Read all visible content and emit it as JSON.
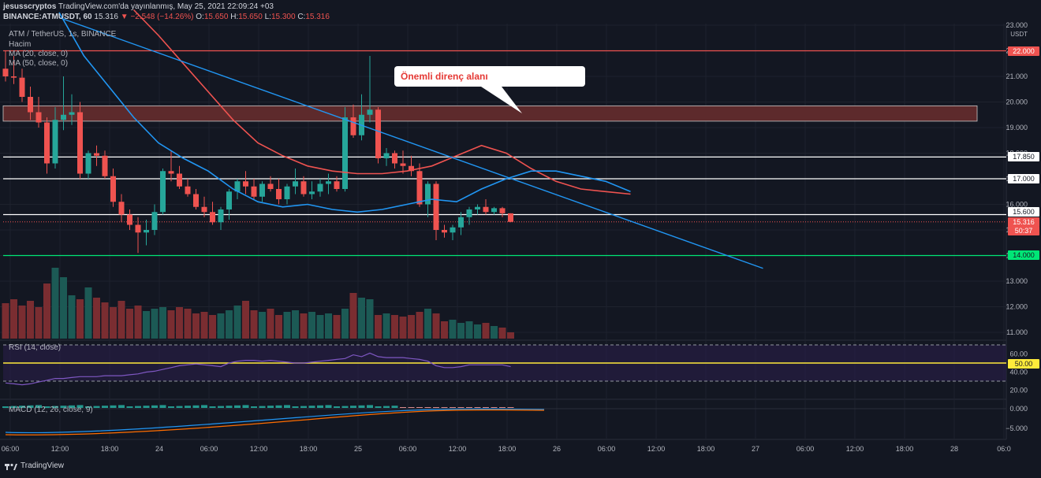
{
  "header": {
    "line1_user": "jesusscryptos",
    "line1_rest": "TradingView.com'da yayınlanmış, May 25, 2021 22:09:24 +03",
    "symbol": "BINANCE:ATMUSDT, 60",
    "last": "15.316",
    "change": "▼ −2.548 (−14.26%)",
    "o_label": "O:",
    "o_val": "15.650",
    "h_label": "H:",
    "h_val": "15.650",
    "l_label": "L:",
    "l_val": "15.300",
    "c_label": "C:",
    "c_val": "15.316"
  },
  "legend": {
    "pair": "ATM / TetherUS, 1s, BINANCE",
    "volume": "Hacim",
    "ma20": "MA (20, close, 0)",
    "ma50": "MA (50, close, 0)",
    "rsi": "RSI (14, close)",
    "macd": "MACD (12, 26, close, 9)"
  },
  "annotation": {
    "text": "Önemli direnç alanı"
  },
  "axis": {
    "currency": "USDT",
    "price_ticks": [
      "23.000",
      "22.000",
      "21.000",
      "20.000",
      "19.000",
      "18.000",
      "17.000",
      "16.000",
      "15.000",
      "14.000",
      "13.000",
      "12.000",
      "11.000"
    ],
    "rsi_ticks": [
      "60.00",
      "40.00",
      "20.00"
    ],
    "macd_ticks": [
      "0.000",
      "−5.000"
    ],
    "time_labels": [
      "06:00",
      "12:00",
      "18:00",
      "24",
      "06:00",
      "12:00",
      "18:00",
      "25",
      "06:00",
      "12:00",
      "18:00",
      "26",
      "06:00",
      "12:00",
      "18:00",
      "27",
      "06:00",
      "12:00",
      "18:00",
      "28",
      "06:0"
    ]
  },
  "price_labels": {
    "level_22": "22.000",
    "level_17850": "17.850",
    "level_17": "17.000",
    "level_15600": "15.600",
    "last": "15.316",
    "countdown": "50:37",
    "level_14": "14.000",
    "rsi_mid": "50.00"
  },
  "colors": {
    "up": "#26a69a",
    "down": "#ef5350",
    "bg": "#131722",
    "ma20": "#2196f3",
    "ma50": "#ef5350",
    "trendline": "#2196f3",
    "zone": "#5d2a2c",
    "support": "#00e676",
    "rsi_mid": "#ffeb3b"
  },
  "footer": {
    "brand": "TradingView"
  },
  "chart_data": {
    "type": "candlestick",
    "title": "ATM / TetherUS, 1s, BINANCE",
    "y_range": [
      11.0,
      23.0
    ],
    "horizontal_levels": [
      22.0,
      17.85,
      17.0,
      15.6,
      14.0
    ],
    "resistance_zone": [
      19.25,
      19.85
    ],
    "trendline": {
      "from": [
        "May 23 00:00",
        23.3
      ],
      "to": [
        "May 26 13:00",
        13.5
      ]
    },
    "candles": [
      [
        21.3,
        22.0,
        20.8,
        21.0
      ],
      [
        21.0,
        21.8,
        20.7,
        20.95
      ],
      [
        20.95,
        21.3,
        20.0,
        20.2
      ],
      [
        20.2,
        20.6,
        19.3,
        19.6
      ],
      [
        19.6,
        20.2,
        19.0,
        19.2
      ],
      [
        19.2,
        19.4,
        17.2,
        17.6
      ],
      [
        17.6,
        19.8,
        17.4,
        19.3
      ],
      [
        19.3,
        21.0,
        18.9,
        19.5
      ],
      [
        19.5,
        20.3,
        19.1,
        19.6
      ],
      [
        19.6,
        20.0,
        17.0,
        17.2
      ],
      [
        17.2,
        18.1,
        17.0,
        18.0
      ],
      [
        18.0,
        18.3,
        17.5,
        17.9
      ],
      [
        17.9,
        18.1,
        17.0,
        17.1
      ],
      [
        17.1,
        17.4,
        15.9,
        16.1
      ],
      [
        16.1,
        16.4,
        15.3,
        15.6
      ],
      [
        15.6,
        15.8,
        15.0,
        15.2
      ],
      [
        15.2,
        15.5,
        14.1,
        14.9
      ],
      [
        14.9,
        15.4,
        14.4,
        15.0
      ],
      [
        15.0,
        16.0,
        14.8,
        15.7
      ],
      [
        15.7,
        17.4,
        15.6,
        17.3
      ],
      [
        17.3,
        18.1,
        16.9,
        17.2
      ],
      [
        17.2,
        17.5,
        16.6,
        16.7
      ],
      [
        16.7,
        17.0,
        16.3,
        16.4
      ],
      [
        16.4,
        16.6,
        15.8,
        15.9
      ],
      [
        15.9,
        16.3,
        15.5,
        15.7
      ],
      [
        15.7,
        16.1,
        15.2,
        15.3
      ],
      [
        15.3,
        15.9,
        15.0,
        15.8
      ],
      [
        15.8,
        16.6,
        15.4,
        16.5
      ],
      [
        16.5,
        17.0,
        16.2,
        16.9
      ],
      [
        16.9,
        17.3,
        16.4,
        16.7
      ],
      [
        16.7,
        17.0,
        16.2,
        16.3
      ],
      [
        16.3,
        16.9,
        16.1,
        16.8
      ],
      [
        16.8,
        17.1,
        16.5,
        16.6
      ],
      [
        16.6,
        17.0,
        16.0,
        16.2
      ],
      [
        16.2,
        16.8,
        16.0,
        16.7
      ],
      [
        16.7,
        17.4,
        16.4,
        16.9
      ],
      [
        16.9,
        17.1,
        16.3,
        16.4
      ],
      [
        16.4,
        16.9,
        16.2,
        16.5
      ],
      [
        16.5,
        17.0,
        16.3,
        16.8
      ],
      [
        16.8,
        17.2,
        16.4,
        16.9
      ],
      [
        16.9,
        17.1,
        16.5,
        16.6
      ],
      [
        16.6,
        19.8,
        16.5,
        19.4
      ],
      [
        19.4,
        19.9,
        18.6,
        18.7
      ],
      [
        18.7,
        20.3,
        18.5,
        19.5
      ],
      [
        19.5,
        21.8,
        19.2,
        19.7
      ],
      [
        19.7,
        19.8,
        17.6,
        17.8
      ],
      [
        17.8,
        18.2,
        17.5,
        18.0
      ],
      [
        18.0,
        18.1,
        17.4,
        17.6
      ],
      [
        17.6,
        18.1,
        17.2,
        17.5
      ],
      [
        17.5,
        17.9,
        17.1,
        17.3
      ],
      [
        17.3,
        17.6,
        15.9,
        16.0
      ],
      [
        16.0,
        16.9,
        15.5,
        16.8
      ],
      [
        16.8,
        16.9,
        14.6,
        15.0
      ],
      [
        15.0,
        15.2,
        14.7,
        14.9
      ],
      [
        14.9,
        15.2,
        14.6,
        15.1
      ],
      [
        15.1,
        15.7,
        14.8,
        15.5
      ],
      [
        15.5,
        15.9,
        15.2,
        15.8
      ],
      [
        15.8,
        16.0,
        15.6,
        15.9
      ],
      [
        15.9,
        16.2,
        15.6,
        15.7
      ],
      [
        15.7,
        15.9,
        15.6,
        15.85
      ],
      [
        15.85,
        15.9,
        15.5,
        15.65
      ],
      [
        15.65,
        15.65,
        15.3,
        15.316
      ]
    ],
    "volume": [
      45,
      50,
      42,
      48,
      40,
      70,
      90,
      78,
      55,
      50,
      65,
      52,
      46,
      40,
      48,
      38,
      42,
      35,
      38,
      40,
      36,
      40,
      38,
      32,
      34,
      30,
      32,
      36,
      42,
      48,
      36,
      34,
      38,
      30,
      34,
      36,
      32,
      34,
      30,
      32,
      30,
      38,
      58,
      52,
      50,
      30,
      32,
      30,
      28,
      30,
      34,
      38,
      32,
      22,
      24,
      20,
      22,
      18,
      20,
      16,
      14,
      8
    ],
    "ma20": [
      [
        "May 23 00:00",
        23.5
      ],
      [
        "May 23 03:00",
        21.8
      ],
      [
        "May 23 06:00",
        20.6
      ],
      [
        "May 23 09:00",
        19.4
      ],
      [
        "May 23 12:00",
        18.4
      ],
      [
        "May 23 15:00",
        17.8
      ],
      [
        "May 23 18:00",
        17.3
      ],
      [
        "May 23 21:00",
        16.6
      ],
      [
        "May 24 00:00",
        16.1
      ],
      [
        "May 24 03:00",
        15.9
      ],
      [
        "May 24 06:00",
        16.0
      ],
      [
        "May 24 09:00",
        15.8
      ],
      [
        "May 24 12:00",
        15.7
      ],
      [
        "May 24 15:00",
        15.8
      ],
      [
        "May 24 18:00",
        16.0
      ],
      [
        "May 24 21:00",
        16.2
      ],
      [
        "May 25 00:00",
        16.1
      ],
      [
        "May 25 03:00",
        16.6
      ],
      [
        "May 25 06:00",
        17.0
      ],
      [
        "May 25 09:00",
        17.3
      ],
      [
        "May 25 12:00",
        17.3
      ],
      [
        "May 25 15:00",
        17.1
      ],
      [
        "May 25 18:00",
        16.9
      ],
      [
        "May 25 21:00",
        16.5
      ]
    ],
    "ma50": [
      [
        "May 23 09:00",
        23.6
      ],
      [
        "May 23 12:00",
        22.6
      ],
      [
        "May 23 15:00",
        21.5
      ],
      [
        "May 23 18:00",
        20.4
      ],
      [
        "May 23 21:00",
        19.3
      ],
      [
        "May 24 00:00",
        18.4
      ],
      [
        "May 24 03:00",
        17.9
      ],
      [
        "May 24 06:00",
        17.5
      ],
      [
        "May 24 09:00",
        17.3
      ],
      [
        "May 24 12:00",
        17.2
      ],
      [
        "May 24 15:00",
        17.2
      ],
      [
        "May 24 18:00",
        17.3
      ],
      [
        "May 24 21:00",
        17.5
      ],
      [
        "May 25 00:00",
        17.9
      ],
      [
        "May 25 03:00",
        18.3
      ],
      [
        "May 25 06:00",
        18.0
      ],
      [
        "May 25 09:00",
        17.4
      ],
      [
        "May 25 12:00",
        16.9
      ],
      [
        "May 25 15:00",
        16.6
      ],
      [
        "May 25 18:00",
        16.5
      ],
      [
        "May 25 21:00",
        16.4
      ]
    ],
    "rsi": [
      28,
      27,
      26,
      27,
      29,
      31,
      33,
      33,
      34,
      35,
      35,
      35,
      36,
      36,
      36,
      37,
      38,
      40,
      41,
      43,
      45,
      47,
      48,
      49,
      48,
      47,
      46,
      50,
      52,
      53,
      53,
      52,
      53,
      52,
      51,
      50,
      50,
      51,
      52,
      53,
      54,
      55,
      59,
      57,
      61,
      57,
      56,
      56,
      56,
      55,
      54,
      52,
      47,
      45,
      45,
      46,
      48,
      48,
      48,
      48,
      48,
      46
    ]
  }
}
